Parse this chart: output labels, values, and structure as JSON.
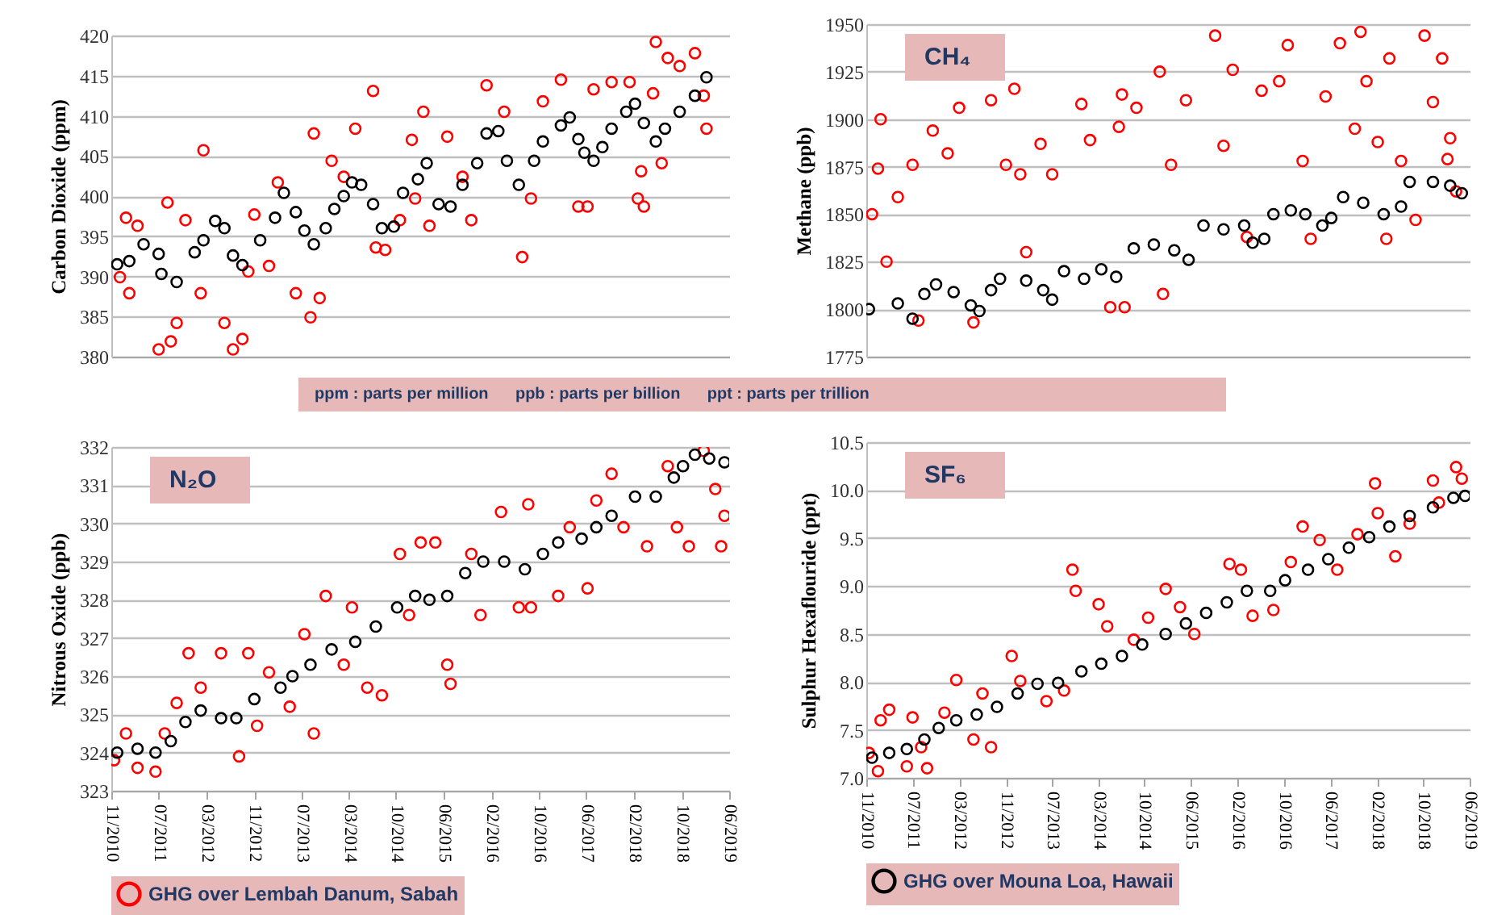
{
  "chart_data": [
    {
      "type": "scatter",
      "ylabel": "Carbon Dioxide (ppm)",
      "xlim": [
        "2010-11-01",
        "2019-06-25"
      ],
      "ylim": [
        380,
        420
      ],
      "yticks": [
        380,
        385,
        390,
        395,
        400,
        405,
        410,
        415,
        420
      ],
      "grid": "y",
      "marker": "circle",
      "tick_labels": "y",
      "annotations": [
        "ppm : parts per million      ppb : parts per billion      ppt : parts per trillion"
      ],
      "series": [
        {
          "color": "#ff0000",
          "x": [
            "2010-12-15",
            "2011-01-15",
            "2011-02-01",
            "2011-03-15",
            "2011-07-01",
            "2011-08-15",
            "2011-09-01",
            "2011-10-01",
            "2011-11-15",
            "2012-02-15",
            "2012-02-01",
            "2012-06-01",
            "2012-07-15",
            "2012-09-01",
            "2012-10-01",
            "2012-11-01",
            "2013-01-15",
            "2013-03-01",
            "2013-06-01",
            "2013-08-15",
            "2013-09-01",
            "2013-10-01",
            "2013-12-01",
            "2014-02-01",
            "2014-04-01",
            "2014-07-01",
            "2014-07-15",
            "2014-09-01",
            "2014-11-15",
            "2015-01-15",
            "2015-02-01",
            "2015-03-15",
            "2015-04-15",
            "2015-07-15",
            "2015-10-01",
            "2015-11-15",
            "2016-02-01",
            "2016-05-01",
            "2016-08-01",
            "2016-09-15",
            "2016-11-15",
            "2017-02-15",
            "2017-05-15",
            "2017-07-01",
            "2017-08-01",
            "2017-11-01",
            "2018-02-01",
            "2018-03-15",
            "2018-04-01",
            "2018-04-15",
            "2018-06-01",
            "2018-06-15",
            "2018-07-15",
            "2018-08-15",
            "2018-10-15",
            "2019-01-01",
            "2019-02-15",
            "2019-03-01"
          ],
          "values": [
            389.9,
            397.3,
            387.9,
            396.3,
            380.9,
            399.2,
            381.9,
            384.2,
            397,
            405.7,
            387.9,
            384.2,
            380.9,
            382.2,
            390.6,
            397.7,
            391.3,
            401.7,
            387.9,
            384.9,
            407.8,
            387.3,
            404.4,
            402.4,
            408.4,
            413.1,
            393.6,
            393.3,
            397,
            407,
            399.7,
            410.5,
            396.3,
            407.4,
            402.4,
            397,
            413.8,
            410.5,
            392.4,
            399.7,
            411.8,
            414.5,
            398.7,
            398.7,
            413.3,
            414.2,
            414.2,
            399.7,
            403.1,
            398.7,
            412.8,
            419.2,
            404.1,
            417.2,
            416.2,
            417.8,
            412.5,
            408.4
          ]
        },
        {
          "color": "#000000",
          "x": [
            "2010-12-01",
            "2011-02-01",
            "2011-04-15",
            "2011-07-01",
            "2011-07-15",
            "2011-10-01",
            "2012-01-01",
            "2012-02-15",
            "2012-04-15",
            "2012-06-01",
            "2012-07-15",
            "2012-09-01",
            "2012-12-01",
            "2013-02-15",
            "2013-04-01",
            "2013-06-01",
            "2013-07-15",
            "2013-09-01",
            "2013-11-01",
            "2013-12-15",
            "2014-02-01",
            "2014-03-15",
            "2014-05-01",
            "2014-07-01",
            "2014-08-15",
            "2014-10-15",
            "2014-12-01",
            "2015-02-15",
            "2015-04-01",
            "2015-06-01",
            "2015-08-01",
            "2015-10-01",
            "2015-12-15",
            "2016-02-01",
            "2016-04-01",
            "2016-05-15",
            "2016-07-15",
            "2016-10-01",
            "2016-11-15",
            "2017-02-15",
            "2017-04-01",
            "2017-05-15",
            "2017-06-15",
            "2017-08-01",
            "2017-09-15",
            "2017-11-01",
            "2018-01-15",
            "2018-03-01",
            "2018-04-15",
            "2018-06-15",
            "2018-08-01",
            "2018-10-15",
            "2019-01-01",
            "2019-03-01"
          ],
          "values": [
            391.5,
            391.9,
            394.0,
            392.8,
            390.3,
            389.3,
            393,
            394.5,
            396.9,
            396,
            392.6,
            391.4,
            394.5,
            397.3,
            400.4,
            398,
            395.7,
            394,
            396,
            398.4,
            400,
            401.7,
            401.4,
            399,
            396,
            396.2,
            400.4,
            402.1,
            404.1,
            399,
            398.7,
            401.4,
            404.1,
            407.8,
            408.1,
            404.4,
            401.4,
            404.4,
            406.8,
            408.8,
            409.8,
            407.1,
            405.4,
            404.4,
            406.1,
            408.4,
            410.5,
            411.5,
            409.1,
            406.8,
            408.4,
            410.5,
            412.5,
            414.8
          ]
        }
      ]
    },
    {
      "type": "scatter",
      "title": "CH₄",
      "ylabel": "Methane (ppb)",
      "xlim": [
        "2010-11-01",
        "2019-06-25"
      ],
      "ylim": [
        1775,
        1950
      ],
      "yticks": [
        1775,
        1800,
        1825,
        1850,
        1875,
        1900,
        1925,
        1950
      ],
      "grid": "y",
      "marker": "circle",
      "tick_labels": "y",
      "series": [
        {
          "color": "#ff0000",
          "x": [
            "2011-01-15",
            "2010-12-01",
            "2011-01-01",
            "2011-02-15",
            "2011-04-15",
            "2011-07-01",
            "2011-08-01",
            "2011-10-15",
            "2012-01-01",
            "2012-03-01",
            "2012-05-15",
            "2012-08-15",
            "2012-11-01",
            "2012-12-15",
            "2013-01-15",
            "2013-02-15",
            "2013-05-01",
            "2013-07-01",
            "2013-12-01",
            "2014-01-15",
            "2014-05-01",
            "2014-06-15",
            "2014-07-15",
            "2014-07-01",
            "2014-09-15",
            "2015-01-15",
            "2015-02-01",
            "2015-03-15",
            "2015-06-01",
            "2015-11-01",
            "2015-12-15",
            "2016-02-01",
            "2016-04-15",
            "2016-07-01",
            "2016-10-01",
            "2016-11-15",
            "2017-02-01",
            "2017-03-15",
            "2017-06-01",
            "2017-08-15",
            "2017-11-01",
            "2017-12-01",
            "2018-01-01",
            "2018-03-01",
            "2018-04-15",
            "2018-05-01",
            "2018-07-01",
            "2018-09-15",
            "2018-11-01",
            "2018-12-15",
            "2019-02-01",
            "2019-03-01",
            "2019-03-15",
            "2019-04-15"
          ],
          "values": [
            1900,
            1850,
            1874,
            1825,
            1859,
            1876,
            1794,
            1894,
            1882,
            1906,
            1793,
            1910,
            1876,
            1916,
            1871,
            1830,
            1887,
            1871,
            1908,
            1889,
            1801,
            1896,
            1801,
            1913,
            1906,
            1925,
            1808,
            1876,
            1910,
            1944,
            1886,
            1926,
            1838,
            1915,
            1920,
            1939,
            1878,
            1837,
            1912,
            1940,
            1895,
            1946,
            1920,
            1888,
            1837,
            1932,
            1878,
            1847,
            1944,
            1909,
            1932,
            1879,
            1890,
            1862
          ]
        },
        {
          "color": "#000000",
          "x": [
            "2010-11-15",
            "2011-04-15",
            "2011-07-01",
            "2011-09-01",
            "2011-11-01",
            "2012-02-01",
            "2012-05-01",
            "2012-06-15",
            "2012-08-15",
            "2012-10-01",
            "2013-02-15",
            "2013-05-15",
            "2013-07-01",
            "2013-09-01",
            "2013-12-15",
            "2014-03-15",
            "2014-06-01",
            "2014-09-01",
            "2014-12-15",
            "2015-04-01",
            "2015-06-15",
            "2015-09-01",
            "2015-12-15",
            "2016-04-01",
            "2016-05-15",
            "2016-07-15",
            "2016-09-01",
            "2016-12-01",
            "2017-02-15",
            "2017-05-15",
            "2017-07-01",
            "2017-09-01",
            "2017-12-15",
            "2018-04-01",
            "2018-07-01",
            "2018-08-15",
            "2018-12-15",
            "2019-03-15",
            "2019-05-15"
          ],
          "values": [
            1800,
            1803,
            1795,
            1808,
            1813,
            1809,
            1802,
            1799,
            1810,
            1816,
            1815,
            1810,
            1805,
            1820,
            1816,
            1821,
            1817,
            1832,
            1834,
            1831,
            1826,
            1844,
            1842,
            1844,
            1835,
            1837,
            1850,
            1852,
            1850,
            1844,
            1848,
            1859,
            1856,
            1850,
            1854,
            1867,
            1867,
            1865,
            1861
          ]
        }
      ]
    },
    {
      "type": "scatter",
      "title": "N₂O",
      "ylabel": "Nitrous Oxide (ppb)",
      "xlim": [
        "2010-11-01",
        "2019-06-25"
      ],
      "xticks": [
        {
          "value": "2010-11-01",
          "label": "11/2010"
        },
        {
          "value": "2011-07-01",
          "label": "07/2011"
        },
        {
          "value": "2012-03-01",
          "label": "03/2012"
        },
        {
          "value": "2012-11-01",
          "label": "11/2012"
        },
        {
          "value": "2013-07-01",
          "label": "07/2013"
        },
        {
          "value": "2014-03-01",
          "label": "03/2014"
        },
        {
          "value": "2014-10-25",
          "label": "10/2014"
        },
        {
          "value": "2015-06-25",
          "label": "06/2015"
        },
        {
          "value": "2016-02-25",
          "label": "02/2016"
        },
        {
          "value": "2016-10-25",
          "label": "10/2016"
        },
        {
          "value": "2017-06-25",
          "label": "06/2017"
        },
        {
          "value": "2018-02-25",
          "label": "02/2018"
        },
        {
          "value": "2018-10-25",
          "label": "10/2018"
        },
        {
          "value": "2019-06-25",
          "label": "06/2019"
        }
      ],
      "ylim": [
        323,
        332
      ],
      "yticks": [
        323,
        324,
        325,
        326,
        327,
        328,
        329,
        330,
        331,
        332
      ],
      "grid": "y",
      "marker": "circle",
      "legend": "bottom",
      "series": [
        {
          "name": "GHG over Lembah Danum, Sabah",
          "color": "#ff0000",
          "x": [
            "2010-11-15",
            "2011-01-15",
            "2011-03-15",
            "2011-06-15",
            "2011-08-01",
            "2011-10-01",
            "2011-12-01",
            "2012-02-01",
            "2012-05-15",
            "2012-08-15",
            "2012-10-01",
            "2012-11-15",
            "2013-01-15",
            "2013-05-01",
            "2013-07-15",
            "2013-09-01",
            "2013-11-01",
            "2014-02-01",
            "2014-03-15",
            "2014-06-01",
            "2014-08-15",
            "2014-11-15",
            "2015-01-01",
            "2015-03-01",
            "2015-05-15",
            "2015-08-01",
            "2015-07-15",
            "2015-11-15",
            "2016-01-01",
            "2016-04-15",
            "2016-07-15",
            "2016-09-01",
            "2016-09-15",
            "2017-02-01",
            "2017-04-01",
            "2017-07-01",
            "2017-08-15",
            "2017-11-01",
            "2018-01-01",
            "2018-05-01",
            "2018-08-15",
            "2018-10-01",
            "2018-12-01",
            "2019-02-15",
            "2019-04-15",
            "2019-05-15",
            "2019-06-01"
          ],
          "values": [
            323.8,
            324.5,
            323.6,
            323.5,
            324.5,
            325.3,
            326.6,
            325.7,
            326.6,
            323.9,
            326.6,
            324.7,
            326.1,
            325.2,
            327.1,
            324.5,
            328.1,
            326.3,
            327.8,
            325.7,
            325.5,
            329.2,
            327.6,
            329.5,
            329.5,
            325.8,
            326.3,
            329.2,
            327.6,
            330.3,
            327.8,
            330.5,
            327.8,
            328.1,
            329.9,
            328.3,
            330.6,
            331.3,
            329.9,
            329.4,
            331.5,
            329.9,
            329.4,
            331.9,
            330.9,
            329.4,
            330.2
          ]
        },
        {
          "color": "#000000",
          "x": [
            "2010-12-01",
            "2011-03-15",
            "2011-06-15",
            "2011-09-01",
            "2011-11-15",
            "2012-02-01",
            "2012-05-15",
            "2012-08-01",
            "2012-11-01",
            "2013-03-15",
            "2013-05-15",
            "2013-08-15",
            "2013-12-01",
            "2014-04-01",
            "2014-07-15",
            "2014-11-01",
            "2015-02-01",
            "2015-04-15",
            "2015-07-15",
            "2015-10-15",
            "2016-01-15",
            "2016-05-01",
            "2016-08-15",
            "2016-11-15",
            "2017-02-01",
            "2017-06-01",
            "2017-08-15",
            "2017-11-01",
            "2018-03-01",
            "2018-06-15",
            "2018-09-15",
            "2018-11-01",
            "2019-01-01",
            "2019-03-15",
            "2019-06-01"
          ],
          "values": [
            324.0,
            324.1,
            324.0,
            324.3,
            324.8,
            325.1,
            324.9,
            324.9,
            325.4,
            325.7,
            326.0,
            326.3,
            326.7,
            326.9,
            327.3,
            327.8,
            328.1,
            328.0,
            328.1,
            328.7,
            329.0,
            329.0,
            328.8,
            329.2,
            329.5,
            329.6,
            329.9,
            330.2,
            330.7,
            330.7,
            331.2,
            331.5,
            331.8,
            331.7,
            331.6
          ]
        }
      ]
    },
    {
      "type": "scatter",
      "title": "SF₆",
      "ylabel": "Sulphur Hexaflouride (ppt)",
      "xlim": [
        "2010-11-01",
        "2019-06-25"
      ],
      "xticks": [
        {
          "value": "2010-11-01",
          "label": "11/2010"
        },
        {
          "value": "2011-07-01",
          "label": "07/2011"
        },
        {
          "value": "2012-03-01",
          "label": "03/2012"
        },
        {
          "value": "2012-11-01",
          "label": "11/2012"
        },
        {
          "value": "2013-07-01",
          "label": "07/2013"
        },
        {
          "value": "2014-03-01",
          "label": "03/2014"
        },
        {
          "value": "2014-10-25",
          "label": "10/2014"
        },
        {
          "value": "2015-06-25",
          "label": "06/2015"
        },
        {
          "value": "2016-02-25",
          "label": "02/2016"
        },
        {
          "value": "2016-10-25",
          "label": "10/2016"
        },
        {
          "value": "2017-06-25",
          "label": "06/2017"
        },
        {
          "value": "2018-02-25",
          "label": "02/2018"
        },
        {
          "value": "2018-10-25",
          "label": "10/2018"
        },
        {
          "value": "2019-06-25",
          "label": "06/2019"
        }
      ],
      "ylim": [
        7,
        10.5
      ],
      "yticks": [
        {
          "value": 7,
          "label": "7.0"
        },
        7.5,
        {
          "value": 8,
          "label": "8.0"
        },
        8.5,
        {
          "value": 9,
          "label": "9.0"
        },
        9.5,
        {
          "value": 10,
          "label": "10.0"
        },
        10.5
      ],
      "grid": "y",
      "marker": "circle",
      "legend": "bottom",
      "series": [
        {
          "color": "#ff0000",
          "x": [
            "2010-11-15",
            "2011-01-01",
            "2011-01-15",
            "2011-03-01",
            "2011-06-01",
            "2011-07-01",
            "2011-09-15",
            "2011-08-15",
            "2011-12-15",
            "2012-02-15",
            "2012-05-15",
            "2012-07-01",
            "2012-08-15",
            "2012-12-01",
            "2013-01-15",
            "2013-06-01",
            "2013-10-15",
            "2013-11-01",
            "2013-09-01",
            "2014-03-01",
            "2014-04-15",
            "2014-09-01",
            "2014-11-15",
            "2015-02-15",
            "2015-05-01",
            "2015-07-15",
            "2016-01-15",
            "2016-03-15",
            "2016-05-15",
            "2016-09-01",
            "2016-12-01",
            "2017-02-01",
            "2017-05-01",
            "2017-08-01",
            "2017-11-15",
            "2018-02-15",
            "2018-03-01",
            "2018-06-01",
            "2018-08-15",
            "2018-12-15",
            "2019-01-15",
            "2019-04-15",
            "2019-05-15"
          ],
          "values": [
            7.26,
            7.07,
            7.6,
            7.71,
            7.12,
            7.63,
            7.1,
            7.32,
            7.68,
            8.02,
            7.4,
            7.88,
            7.32,
            8.27,
            8.01,
            7.8,
            9.17,
            8.95,
            7.91,
            8.81,
            8.58,
            8.44,
            8.67,
            8.97,
            8.78,
            8.5,
            9.23,
            9.17,
            8.69,
            8.75,
            9.25,
            9.62,
            9.48,
            9.17,
            9.54,
            10.07,
            9.76,
            9.31,
            9.65,
            10.1,
            9.87,
            10.24,
            10.12
          ]
        },
        {
          "name": "GHG over Mouna Loa, Hawaii",
          "color": "#000000",
          "x": [
            "2010-12-01",
            "2011-03-01",
            "2011-06-01",
            "2011-09-01",
            "2011-11-15",
            "2012-02-15",
            "2012-06-01",
            "2012-09-15",
            "2013-01-01",
            "2013-04-15",
            "2013-08-01",
            "2013-12-01",
            "2014-03-15",
            "2014-07-01",
            "2014-10-15",
            "2015-02-15",
            "2015-06-01",
            "2015-09-15",
            "2016-01-01",
            "2016-04-15",
            "2016-08-15",
            "2016-11-01",
            "2017-03-01",
            "2017-06-15",
            "2017-10-01",
            "2018-01-15",
            "2018-05-01",
            "2018-08-15",
            "2018-12-15",
            "2019-04-01",
            "2019-06-01"
          ],
          "values": [
            7.21,
            7.26,
            7.3,
            7.4,
            7.52,
            7.6,
            7.66,
            7.74,
            7.88,
            7.98,
            7.99,
            8.11,
            8.19,
            8.27,
            8.39,
            8.5,
            8.61,
            8.72,
            8.83,
            8.95,
            8.95,
            9.06,
            9.17,
            9.28,
            9.4,
            9.51,
            9.62,
            9.73,
            9.82,
            9.92,
            9.94
          ]
        }
      ]
    }
  ]
}
